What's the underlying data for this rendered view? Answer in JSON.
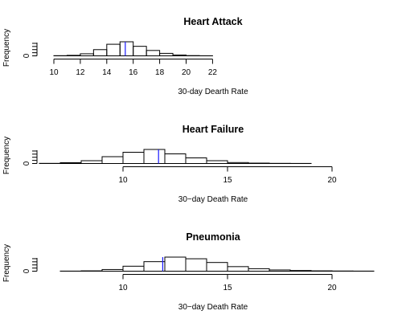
{
  "chart_data": [
    {
      "type": "bar",
      "title": "Heart Attack",
      "xlabel": "30-day Dearth Rate",
      "ylabel": "Frequency",
      "xlim": [
        10,
        22
      ],
      "xticks": [
        10,
        12,
        14,
        16,
        18,
        20,
        22
      ],
      "ytick_labels": [
        "0"
      ],
      "bin_edges": [
        10,
        11,
        12,
        13,
        14,
        15,
        16,
        17,
        18,
        19,
        20,
        21,
        22
      ],
      "values": [
        2,
        6,
        25,
        75,
        140,
        170,
        115,
        65,
        30,
        10,
        3,
        1
      ],
      "mean_line": 15.4,
      "mean_line_color": "#1a1aff"
    },
    {
      "type": "bar",
      "title": "Heart Failure",
      "xlabel": "30−day Death Rate",
      "ylabel": "Frequency",
      "xlim": [
        6,
        21
      ],
      "xticks": [
        10,
        15,
        20
      ],
      "ytick_labels": [
        "0"
      ],
      "bin_edges": [
        6,
        7,
        8,
        9,
        10,
        11,
        12,
        13,
        14,
        15,
        16,
        17,
        18,
        19
      ],
      "values": [
        2,
        10,
        35,
        85,
        140,
        175,
        120,
        70,
        35,
        12,
        5,
        2,
        1
      ],
      "mean_line": 11.7,
      "mean_line_color": "#1a1aff"
    },
    {
      "type": "bar",
      "title": "Pneumonia",
      "xlabel": "30−day Death Rate",
      "ylabel": "Frequency",
      "xlim": [
        6,
        22
      ],
      "xticks": [
        10,
        15,
        20
      ],
      "ytick_labels": [
        "0"
      ],
      "bin_edges": [
        7,
        8,
        9,
        10,
        11,
        12,
        13,
        14,
        15,
        16,
        17,
        18,
        19,
        20,
        21,
        22
      ],
      "values": [
        1,
        4,
        20,
        60,
        115,
        170,
        150,
        105,
        55,
        30,
        15,
        8,
        4,
        2,
        1
      ],
      "mean_line": 11.9,
      "mean_line_color": "#1a1aff"
    }
  ]
}
